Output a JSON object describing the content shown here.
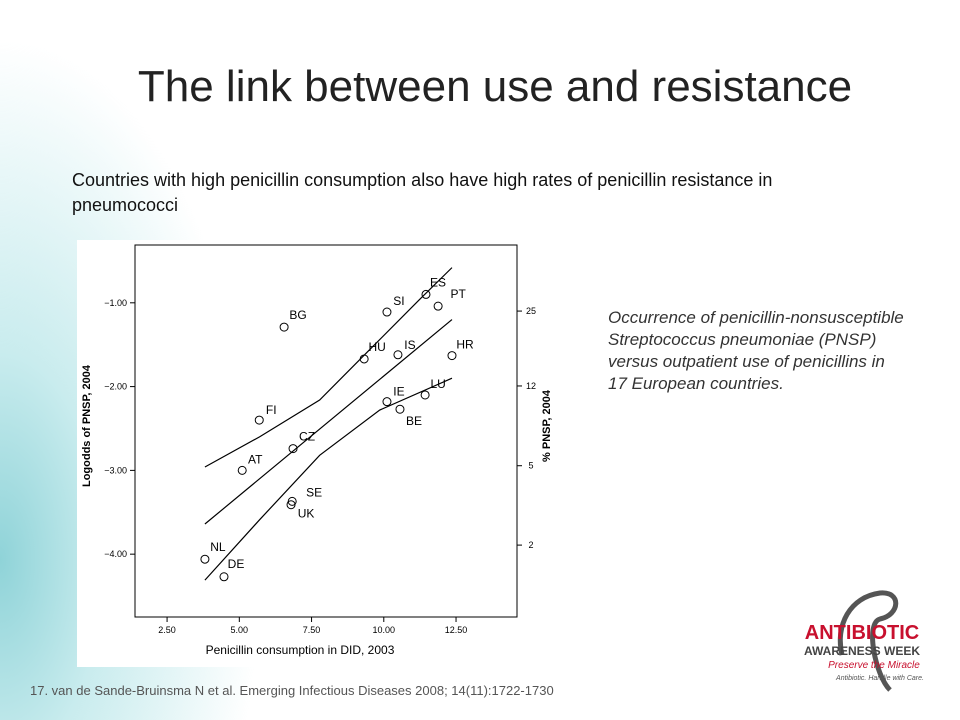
{
  "title": "The link between use and resistance",
  "subtitle": "Countries with high penicillin consumption also have high rates of penicillin resistance in pneumococci",
  "caption": "Occurrence of penicillin-nonsusceptible Streptococcus pneumoniae (PNSP) versus outpatient use of penicillins in 17 European countries.",
  "citation": "17. van de Sande-Bruinsma N et al. Emerging Infectious Diseases 2008; 14(11):1722-1730",
  "logo": {
    "line1": "ANTIBIOTIC",
    "line2": "AWARENESS WEEK",
    "line3": "Preserve the Miracle",
    "line4": "Antibiotic. Handle with Care."
  },
  "chart_data": {
    "type": "scatter",
    "x_label": "Penicillin consumption in DID, 2003",
    "y_label": "Logodds of PNSP, 2004",
    "y2_label": "% PNSP, 2004",
    "points": {
      "labels": [
        "ES",
        "PT",
        "SI",
        "BG",
        "HU",
        "IS",
        "HR",
        "IE",
        "LU",
        "BE",
        "FI",
        "CZ",
        "AT",
        "SE",
        "UK",
        "NL",
        "DE"
      ],
      "x": [
        11.46,
        11.88,
        10.11,
        6.55,
        9.32,
        10.49,
        12.36,
        10.11,
        11.43,
        10.56,
        5.69,
        6.86,
        5.1,
        6.83,
        6.79,
        3.81,
        4.47
      ],
      "y": [
        -0.9,
        -1.04,
        -1.11,
        -1.29,
        -1.67,
        -1.62,
        -1.63,
        -2.18,
        -2.1,
        -2.27,
        -2.4,
        -2.74,
        -3.0,
        -3.37,
        -3.41,
        -4.06,
        -4.27
      ]
    },
    "lines": [
      {
        "x": [
          3.81,
          12.36
        ],
        "y": [
          -3.64,
          -1.2
        ]
      },
      {
        "x": [
          3.81,
          5.7,
          7.78,
          9.51,
          11.24,
          12.36
        ],
        "y": [
          -2.96,
          -2.6,
          -2.16,
          -1.56,
          -0.96,
          -0.58
        ]
      },
      {
        "x": [
          3.81,
          5.7,
          7.78,
          9.86,
          12.36
        ],
        "y": [
          -4.31,
          -3.59,
          -2.82,
          -2.28,
          -1.9
        ]
      }
    ],
    "xlim": [
      1.39,
      14.61
    ],
    "ylim": [
      -4.75,
      -0.31
    ],
    "y2scale": "logit-percent",
    "xticks": [
      {
        "value": 2.5,
        "label": "2.50"
      },
      {
        "value": 5,
        "label": "5.00"
      },
      {
        "value": 7.5,
        "label": "7.50"
      },
      {
        "value": 10,
        "label": "10.00"
      },
      {
        "value": 12.5,
        "label": "12.50"
      }
    ],
    "yticks": [
      {
        "value": -1,
        "label": "−1.00"
      },
      {
        "value": -2,
        "label": "−2.00"
      },
      {
        "value": -3,
        "label": "−3.00"
      },
      {
        "value": -4,
        "label": "−4.00"
      }
    ],
    "y2ticks": [
      25,
      12,
      5,
      2
    ]
  }
}
